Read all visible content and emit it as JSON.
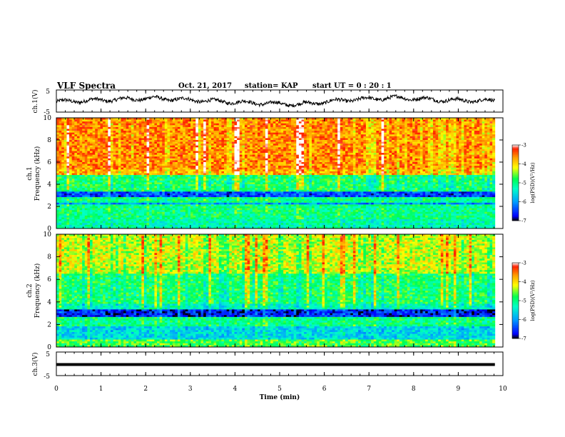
{
  "header": {
    "title": "VLF Spectra",
    "date": "Oct. 21, 2017",
    "station": "station= KAP",
    "start": "start  UT =  0 : 20 : 1"
  },
  "chart_data": {
    "type": "heatmap",
    "x_axis": {
      "label": "Time  (min)",
      "range": [
        0,
        10
      ],
      "ticks": [
        0,
        1,
        2,
        3,
        4,
        5,
        6,
        7,
        8,
        9,
        10
      ]
    },
    "panels": [
      {
        "id": "ch1-waveform",
        "type": "line",
        "ylabel": "ch.1(V)",
        "ylim": [
          -5,
          5
        ],
        "y_ticks": [
          "5",
          "-5"
        ],
        "data_extent_min": 9.82,
        "values_approx": [
          -0.3,
          0.5,
          1.3,
          0.2,
          -0.8,
          -1.5,
          0.6,
          1.5,
          0.4,
          0.1
        ]
      },
      {
        "id": "ch1-spectrogram",
        "type": "heatmap",
        "ylabel": "ch.1\nFrequency (kHz)",
        "ylim": [
          0,
          10
        ],
        "y_ticks": [
          "0",
          "2",
          "4",
          "6",
          "8",
          "10"
        ],
        "colorbar": {
          "label": "log(PSD)(V²/Hz)",
          "range": [
            -7,
            -3
          ],
          "ticks": [
            "-3",
            "-4",
            "-5",
            "-6",
            "-7"
          ]
        },
        "bands_log_psd": [
          {
            "freq_khz": [
              0,
              0.8
            ],
            "level": -5.2
          },
          {
            "freq_khz": [
              0.8,
              2.2
            ],
            "level": -5.0
          },
          {
            "freq_khz": [
              2.2,
              2.4
            ],
            "level": -6.0
          },
          {
            "freq_khz": [
              2.4,
              2.8
            ],
            "level": -5.0
          },
          {
            "freq_khz": [
              2.8,
              3.4
            ],
            "level": -6.4
          },
          {
            "freq_khz": [
              3.4,
              4.8
            ],
            "level": -4.9
          },
          {
            "freq_khz": [
              4.8,
              5.4
            ],
            "level": -3.8
          },
          {
            "freq_khz": [
              5.4,
              10
            ],
            "level": -3.6
          }
        ]
      },
      {
        "id": "ch2-spectrogram",
        "type": "heatmap",
        "ylabel": "ch.2\nFrequency (kHz)",
        "ylim": [
          0,
          10
        ],
        "y_ticks": [
          "0",
          "2",
          "4",
          "6",
          "8",
          "10"
        ],
        "colorbar": {
          "label": "log(PSD)(V²/Hz)",
          "range": [
            -7,
            -3
          ],
          "ticks": [
            "-3",
            "-4",
            "-5",
            "-6",
            "-7"
          ]
        },
        "bands_log_psd": [
          {
            "freq_khz": [
              0,
              0.6
            ],
            "level": -4.7
          },
          {
            "freq_khz": [
              0.6,
              1.8
            ],
            "level": -5.6
          },
          {
            "freq_khz": [
              1.8,
              2.6
            ],
            "level": -5.0
          },
          {
            "freq_khz": [
              2.6,
              3.4
            ],
            "level": -6.6
          },
          {
            "freq_khz": [
              3.4,
              3.8
            ],
            "level": -5.3
          },
          {
            "freq_khz": [
              3.8,
              6.5
            ],
            "level": -4.9
          },
          {
            "freq_khz": [
              6.5,
              10
            ],
            "level": -4.3
          }
        ]
      },
      {
        "id": "ch3-waveform",
        "type": "line",
        "ylabel": "ch.3(V)",
        "ylim": [
          -5,
          5
        ],
        "y_ticks": [
          "5",
          "-5"
        ],
        "constant_value_v": 0
      }
    ]
  },
  "colors": {
    "background": "#ffffff",
    "axes": "#000000",
    "colormap": [
      "#000000",
      "#0000ff",
      "#00a0ff",
      "#00ffc0",
      "#00ff60",
      "#ffff00",
      "#ffa000",
      "#ff2000",
      "#ffffff"
    ]
  }
}
